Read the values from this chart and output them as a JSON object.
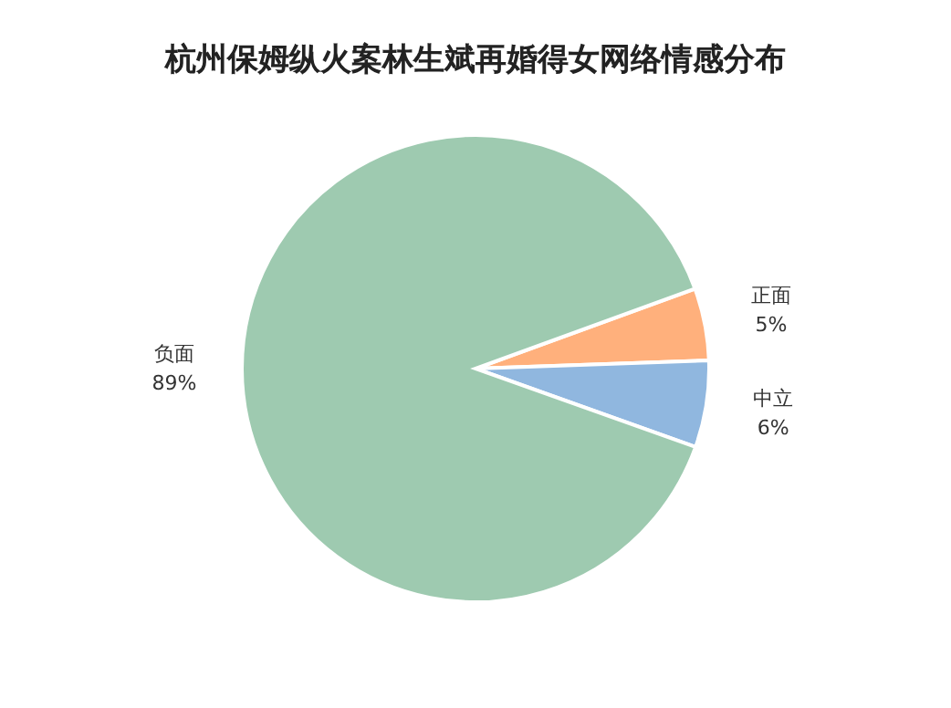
{
  "chart_data": {
    "type": "pie",
    "title": "杭州保姆纵火案林生斌再婚得女网络情感分布",
    "categories": [
      "正面",
      "中立",
      "负面"
    ],
    "values": [
      5,
      6,
      89
    ],
    "value_labels": [
      "5%",
      "6%",
      "89%"
    ],
    "colors": [
      "#ffb07c",
      "#90b7df",
      "#9ecab0"
    ]
  }
}
